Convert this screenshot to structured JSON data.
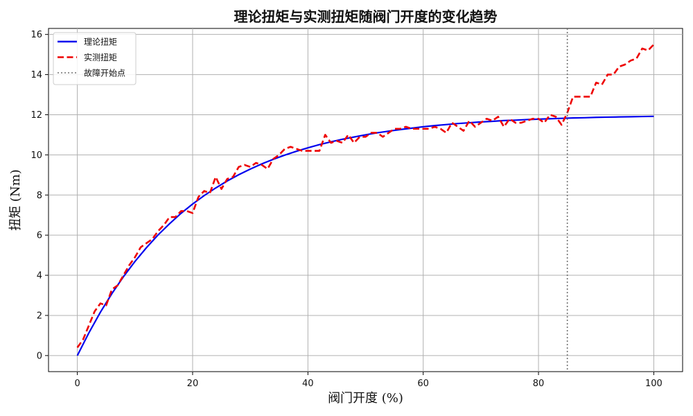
{
  "chart_data": {
    "type": "line",
    "title": "理论扭矩与实测扭矩随阀门开度的变化趋势",
    "xlabel": "阀门开度 (%)",
    "ylabel": "扭矩 (Nm)",
    "xlim": [
      -5,
      105
    ],
    "ylim": [
      -0.8,
      16.3
    ],
    "xticks": [
      0,
      20,
      40,
      60,
      80,
      100
    ],
    "yticks": [
      0,
      2,
      4,
      6,
      8,
      10,
      12,
      14,
      16
    ],
    "grid": true,
    "legend_position": "top-left",
    "series": [
      {
        "name": "理论扭矩",
        "color": "#0000ee",
        "style": "solid",
        "x": [
          0,
          2,
          4,
          6,
          8,
          10,
          12,
          14,
          16,
          18,
          20,
          22,
          24,
          26,
          28,
          30,
          32,
          34,
          36,
          38,
          40,
          42,
          44,
          46,
          48,
          50,
          52,
          54,
          56,
          58,
          60,
          62,
          64,
          66,
          68,
          70,
          72,
          74,
          76,
          78,
          80,
          82,
          84,
          86,
          88,
          90,
          92,
          94,
          96,
          98,
          100
        ],
        "y": [
          0,
          1.13,
          2.16,
          3.09,
          3.93,
          4.69,
          5.38,
          6.01,
          6.57,
          7.09,
          7.55,
          7.97,
          8.35,
          8.7,
          9.01,
          9.29,
          9.55,
          9.78,
          9.99,
          10.18,
          10.35,
          10.51,
          10.65,
          10.78,
          10.89,
          11.0,
          11.1,
          11.18,
          11.26,
          11.33,
          11.4,
          11.46,
          11.51,
          11.56,
          11.6,
          11.64,
          11.67,
          11.71,
          11.73,
          11.76,
          11.78,
          11.8,
          11.82,
          11.84,
          11.85,
          11.87,
          11.88,
          11.89,
          11.9,
          11.91,
          11.92
        ]
      },
      {
        "name": "实测扭矩",
        "color": "#ee0000",
        "style": "dashed",
        "x": [
          0,
          1,
          2,
          3,
          4,
          5,
          6,
          7,
          8,
          9,
          10,
          11,
          12,
          13,
          14,
          15,
          16,
          17,
          18,
          19,
          20,
          21,
          22,
          23,
          24,
          25,
          26,
          27,
          28,
          29,
          30,
          31,
          32,
          33,
          34,
          35,
          36,
          37,
          38,
          39,
          40,
          41,
          42,
          43,
          44,
          45,
          46,
          47,
          48,
          49,
          50,
          51,
          52,
          53,
          54,
          55,
          56,
          57,
          58,
          59,
          60,
          61,
          62,
          63,
          64,
          65,
          66,
          67,
          68,
          69,
          70,
          71,
          72,
          73,
          74,
          75,
          76,
          77,
          78,
          79,
          80,
          81,
          82,
          83,
          84,
          85,
          86,
          87,
          88,
          89,
          90,
          91,
          92,
          93,
          94,
          95,
          96,
          97,
          98,
          99,
          100
        ],
        "y": [
          0.4,
          0.8,
          1.5,
          2.2,
          2.6,
          2.5,
          3.3,
          3.5,
          4.0,
          4.5,
          4.9,
          5.4,
          5.6,
          5.8,
          6.2,
          6.5,
          6.9,
          6.9,
          7.2,
          7.2,
          7.1,
          7.9,
          8.2,
          8.1,
          8.9,
          8.3,
          8.8,
          8.9,
          9.4,
          9.5,
          9.4,
          9.6,
          9.5,
          9.3,
          9.8,
          10.0,
          10.3,
          10.4,
          10.3,
          10.2,
          10.2,
          10.2,
          10.2,
          11.0,
          10.6,
          10.7,
          10.6,
          11.0,
          10.6,
          10.9,
          10.9,
          11.1,
          11.1,
          10.9,
          11.1,
          11.3,
          11.3,
          11.4,
          11.3,
          11.3,
          11.3,
          11.3,
          11.4,
          11.3,
          11.1,
          11.6,
          11.4,
          11.2,
          11.7,
          11.4,
          11.6,
          11.8,
          11.7,
          11.9,
          11.4,
          11.8,
          11.6,
          11.6,
          11.7,
          11.8,
          11.8,
          11.6,
          12.0,
          11.9,
          11.5,
          12.1,
          12.9,
          12.9,
          12.9,
          12.9,
          13.6,
          13.5,
          14.0,
          14.0,
          14.4,
          14.5,
          14.7,
          14.8,
          15.3,
          15.2,
          15.5
        ]
      },
      {
        "name": "故障开始点",
        "color": "#707070",
        "style": "dotted",
        "vline_x": 85
      }
    ]
  }
}
